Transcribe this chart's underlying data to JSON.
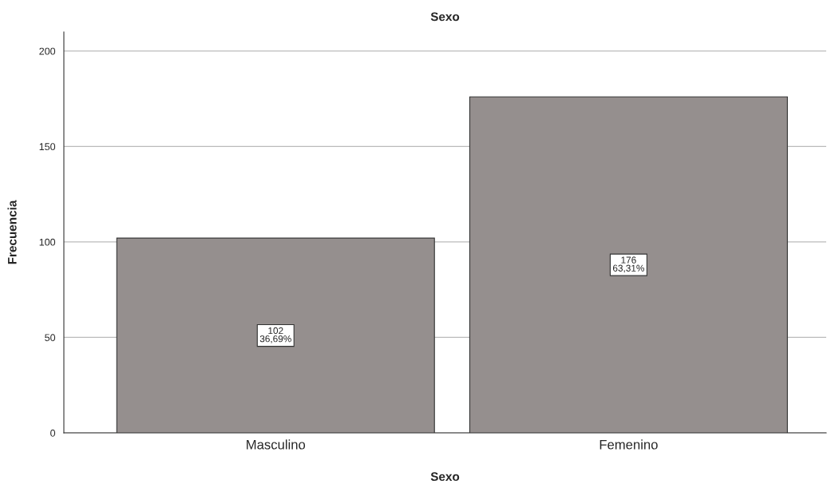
{
  "chart_data": {
    "type": "bar",
    "title": "Sexo",
    "xlabel": "Sexo",
    "ylabel": "Frecuencia",
    "categories": [
      "Masculino",
      "Femenino"
    ],
    "values": [
      102,
      176
    ],
    "value_labels": [
      "102\n36,69%",
      "176\n63,31%"
    ],
    "color": "#958f8e",
    "ylim": [
      0,
      210
    ],
    "yticks": [
      0,
      50,
      100,
      150,
      200
    ],
    "grid": "y",
    "legend": false
  }
}
